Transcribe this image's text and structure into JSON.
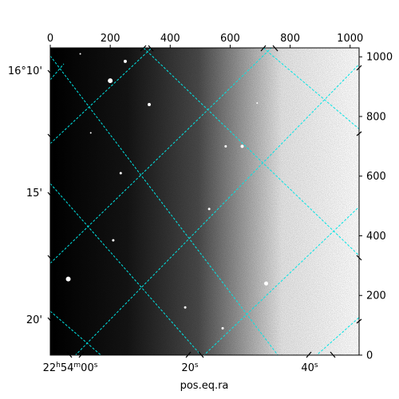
{
  "chart_data": {
    "type": "heatmap",
    "title": "",
    "xlabel": "pos.eq.ra",
    "ylabel": "",
    "pixel_x_ticks": [
      "0",
      "200",
      "400",
      "600",
      "800",
      "1000"
    ],
    "pixel_y_ticks": [
      "0",
      "200",
      "400",
      "600",
      "800",
      "1000"
    ],
    "ra_ticks": [
      {
        "hms": "22",
        "m": "54",
        "s": "00",
        "suffix": "s",
        "short": false
      },
      {
        "s": "20",
        "suffix": "s",
        "short": true
      },
      {
        "s": "40",
        "suffix": "s",
        "short": true
      }
    ],
    "dec_ticks": [
      "16°10'",
      "15'",
      "20'"
    ],
    "pixel_xlim": [
      0,
      1030
    ],
    "pixel_ylim": [
      0,
      1030
    ],
    "colormap": "gray",
    "background_gradient": "dark on left, light on right",
    "grid": true,
    "grid_color": "#00e5e5",
    "grid_style": "dashed",
    "stars": [
      {
        "x": 200,
        "y": 920,
        "size": 3
      },
      {
        "x": 250,
        "y": 985,
        "size": 2
      },
      {
        "x": 330,
        "y": 840,
        "size": 2
      },
      {
        "x": 640,
        "y": 700,
        "size": 2
      },
      {
        "x": 585,
        "y": 700,
        "size": 1.5
      },
      {
        "x": 235,
        "y": 610,
        "size": 1.5
      },
      {
        "x": 530,
        "y": 490,
        "size": 1.5
      },
      {
        "x": 210,
        "y": 385,
        "size": 1.5
      },
      {
        "x": 60,
        "y": 255,
        "size": 3
      },
      {
        "x": 720,
        "y": 240,
        "size": 2.5
      },
      {
        "x": 450,
        "y": 160,
        "size": 1.5
      },
      {
        "x": 575,
        "y": 90,
        "size": 1.5
      },
      {
        "x": 100,
        "y": 1010,
        "size": 1
      },
      {
        "x": 690,
        "y": 845,
        "size": 1
      },
      {
        "x": 135,
        "y": 745,
        "size": 1
      }
    ]
  }
}
